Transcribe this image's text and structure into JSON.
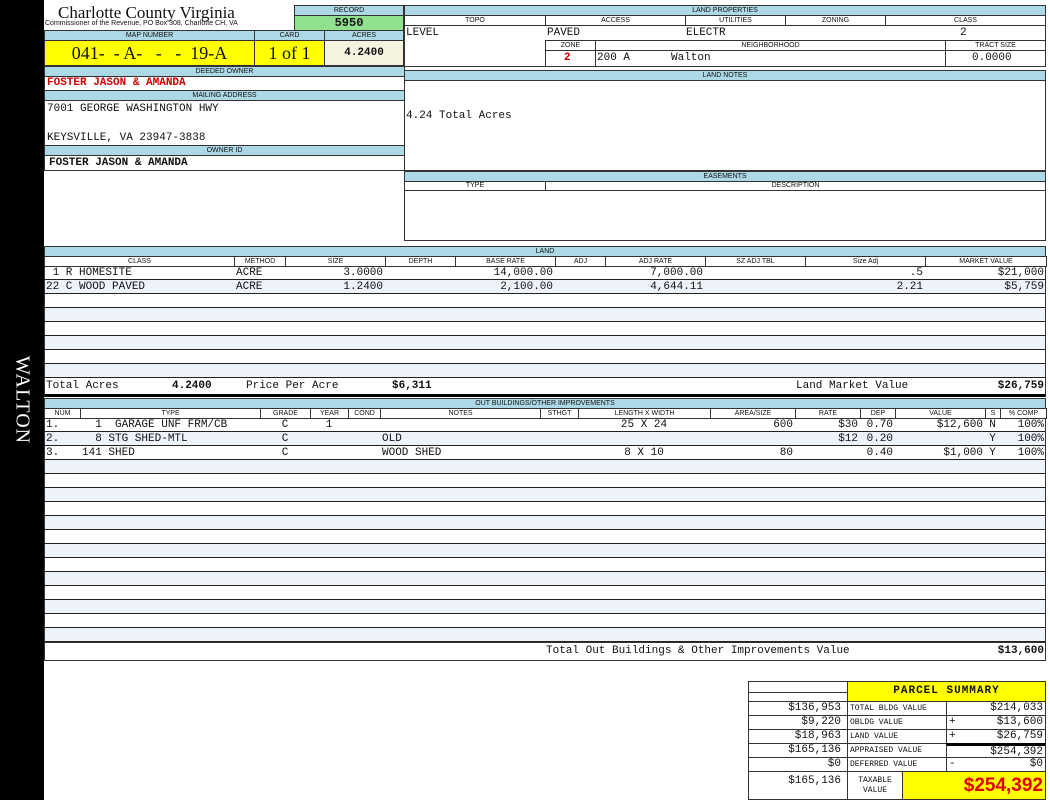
{
  "district_label": "WALTON",
  "header": {
    "title": "Charlotte County Virginia",
    "subtitle": "Commissioner of the Revenue, PO Box 308, Charlotte CH, VA",
    "record_label": "RECORD",
    "record": "5950",
    "map_number_label": "MAP NUMBER",
    "map_number": "041-  - A-   -   -  19-A",
    "card_label": "CARD",
    "card": "1 of 1",
    "acres_label": "ACRES",
    "acres": "4.2400"
  },
  "owner": {
    "deeded_owner_label": "DEEDED OWNER",
    "deeded_owner": "FOSTER JASON & AMANDA",
    "mailing_address_label": "MAILING ADDRESS",
    "address_line1": "7001 GEORGE WASHINGTON HWY",
    "address_line2": "KEYSVILLE, VA 23947-3838",
    "owner_id_label": "OWNER ID",
    "owner_id": "FOSTER JASON & AMANDA"
  },
  "land_properties": {
    "title": "LAND PROPERTIES",
    "topo_label": "TOPO",
    "access_label": "ACCESS",
    "utilities_label": "UTILITIES",
    "zoning_label": "ZONING",
    "class_label": "CLASS",
    "topo": "LEVEL",
    "access": "PAVED",
    "utilities": "ELECTR",
    "class": "2",
    "zone_label": "ZONE",
    "neighborhood_label": "NEIGHBORHOOD",
    "tract_size_label": "TRACT SIZE",
    "zone": "2",
    "neighborhood_code": "200 A",
    "neighborhood": "Walton",
    "tract_size": "0.0000"
  },
  "land_notes": {
    "title": "LAND NOTES",
    "text": "4.24 Total Acres"
  },
  "easements": {
    "title": "EASEMENTS",
    "type_label": "TYPE",
    "description_label": "DESCRIPTION"
  },
  "land": {
    "title": "LAND",
    "columns": [
      "CLASS",
      "METHOD",
      "SIZE",
      "DEPTH",
      "BASE RATE",
      "ADJ",
      "ADJ RATE",
      "SZ ADJ TBL",
      "Size Adj",
      "MARKET VALUE"
    ],
    "rows": [
      [
        " 1 R HOMESITE",
        "ACRE",
        "3.0000",
        "",
        "14,000.00",
        "",
        "7,000.00",
        "",
        ".5",
        "$21,000"
      ],
      [
        "22 C WOOD PAVED",
        "ACRE",
        "1.2400",
        "",
        "2,100.00",
        "",
        "4,644.11",
        "",
        "2.21",
        "$5,759"
      ]
    ],
    "total_acres_label": "Total Acres",
    "total_acres": "4.2400",
    "price_per_acre_label": "Price Per Acre",
    "price_per_acre": "$6,311",
    "market_value_label": "Land Market Value",
    "market_value": "$26,759"
  },
  "outbuildings": {
    "title": "OUT BUILDINGS/OTHER IMPROVEMENTS",
    "columns": [
      "NUM",
      "TYPE",
      "GRADE",
      "YEAR",
      "COND",
      "NOTES",
      "STHGT",
      "LENGTH X WIDTH",
      "AREA/SIZE",
      "RATE",
      "DEP",
      "VALUE",
      "S",
      "% COMP"
    ],
    "rows": [
      [
        "1.",
        "  1  GARAGE UNF FRM/CB",
        "C",
        "1",
        "",
        "",
        "",
        "25 X 24",
        "600",
        "$30",
        "0.70",
        "$12,600",
        "N",
        "100%"
      ],
      [
        "2.",
        "  8 STG SHED-MTL",
        "C",
        "",
        "",
        "OLD",
        "",
        "",
        "",
        "$12",
        "0.20",
        "",
        "Y",
        "100%"
      ],
      [
        "3.",
        "141 SHED",
        "C",
        "",
        "",
        "WOOD SHED",
        "",
        "8 X 10",
        "80",
        "",
        "0.40",
        "$1,000",
        "Y",
        "100%"
      ]
    ],
    "total_label": "Total Out Buildings & Other Improvements Value",
    "total": "$13,600"
  },
  "parcel_summary": {
    "title": "PARCEL SUMMARY",
    "rows": [
      {
        "prior": "$136,953",
        "label": "TOTAL BLDG VALUE",
        "sign": "",
        "value": "$214,033"
      },
      {
        "prior": "$9,220",
        "label": "OBLDG VALUE",
        "sign": "+",
        "value": "$13,600"
      },
      {
        "prior": "$18,963",
        "label": "LAND VALUE",
        "sign": "+",
        "value": "$26,759"
      },
      {
        "prior": "$165,136",
        "label": "APPRAISED VALUE",
        "sign": "",
        "value": "$254,392"
      },
      {
        "prior": "$0",
        "label": "DEFERRED VALUE",
        "sign": "-",
        "value": "$0"
      }
    ],
    "taxable_prior": "$165,136",
    "taxable_label": "TAXABLE VALUE",
    "taxable_value": "$254,392"
  },
  "colors": {
    "header_bg": "#add8e6",
    "yellow": "#ffff00",
    "green": "#90e090",
    "red": "#d00000"
  }
}
